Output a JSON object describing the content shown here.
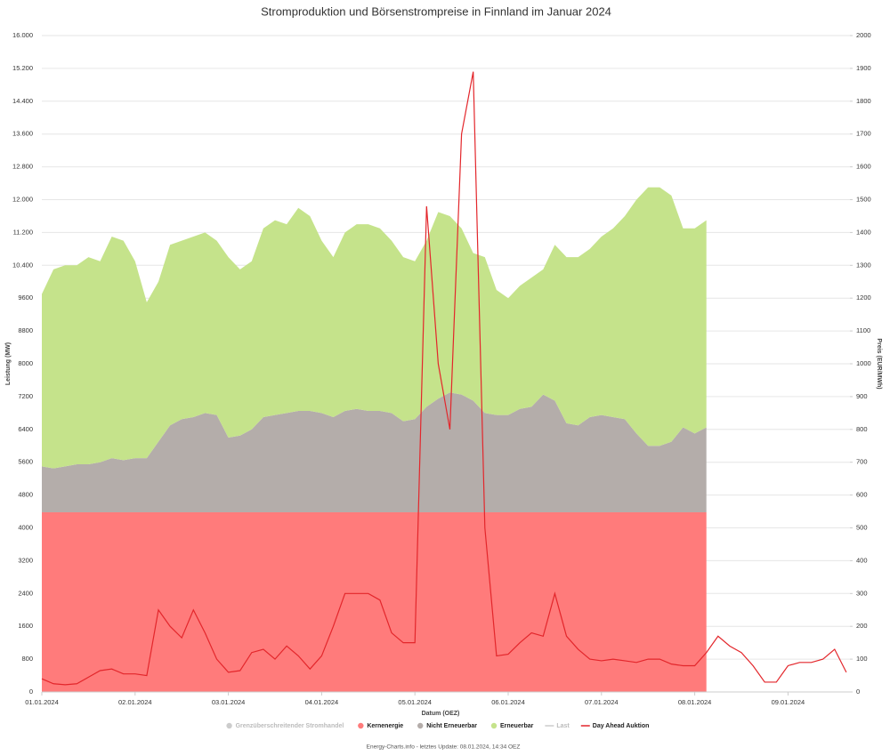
{
  "chart_data": {
    "type": "stacked_area_line",
    "title": "Stromproduktion und Börsenstrompreise in Finnland im Januar 2024",
    "xlabel": "Datum (OEZ)",
    "ylabel": "Leistung (MW)",
    "y2label": "Preis (EUR/MWh)",
    "footer": "Energy-Charts.info - letztes Update: 08.01.2024, 14:34 OEZ",
    "categories": [
      "01.01.2024",
      null,
      null,
      null,
      null,
      null,
      null,
      null,
      "02.01.2024",
      null,
      null,
      null,
      null,
      null,
      null,
      null,
      "03.01.2024",
      null,
      null,
      null,
      null,
      null,
      null,
      null,
      "04.01.2024",
      null,
      null,
      null,
      null,
      null,
      null,
      null,
      "05.01.2024",
      null,
      null,
      null,
      null,
      null,
      null,
      null,
      "06.01.2024",
      null,
      null,
      null,
      null,
      null,
      null,
      null,
      "07.01.2024",
      null,
      null,
      null,
      null,
      null,
      null,
      null,
      "08.01.2024",
      null,
      null,
      null,
      null,
      null,
      null,
      null,
      "09.01.2024",
      null,
      null,
      null,
      null,
      null
    ],
    "ylim": [
      0,
      16000
    ],
    "yticks": [
      0,
      800,
      1600,
      2400,
      3200,
      4000,
      4800,
      5600,
      6400,
      7200,
      8000,
      8800,
      9600,
      {
        "value": 10400,
        "label": "10.400"
      },
      {
        "value": 11200,
        "label": "11.200"
      },
      {
        "value": 12000,
        "label": "12.000"
      },
      {
        "value": 12800,
        "label": "12.800"
      },
      {
        "value": 13600,
        "label": "13.600"
      },
      {
        "value": 14400,
        "label": "14.400"
      },
      {
        "value": 15200,
        "label": "15.200"
      },
      {
        "value": 16000,
        "label": "16.000"
      }
    ],
    "y2lim": [
      0,
      2000
    ],
    "y2ticks": [
      0,
      100,
      200,
      300,
      400,
      500,
      600,
      700,
      800,
      900,
      1000,
      1100,
      1200,
      1300,
      1400,
      1500,
      1600,
      1700,
      1800,
      1900,
      2000
    ],
    "grid": true,
    "legend": "bottom",
    "series": [
      {
        "name": "Grenzüberschreitender Stromhandel",
        "color": "#bdbdbd",
        "visible": false
      },
      {
        "name": "Kernenergie",
        "color": "#ff7b7b",
        "kind": "area",
        "values": [
          4380,
          4380,
          4380,
          4380,
          4380,
          4380,
          4380,
          4380,
          4380,
          4380,
          4380,
          4380,
          4380,
          4380,
          4380,
          4380,
          4380,
          4380,
          4380,
          4380,
          4380,
          4380,
          4380,
          4380,
          4380,
          4380,
          4380,
          4380,
          4380,
          4380,
          4380,
          4380,
          4380,
          4380,
          4380,
          4380,
          4380,
          4380,
          4380,
          4380,
          4380,
          4380,
          4380,
          4380,
          4380,
          4380,
          4380,
          4380,
          4380,
          4380,
          4380,
          4380,
          4380,
          4380,
          4380,
          4380,
          4380,
          4380,
          null,
          null,
          null,
          null,
          null,
          null,
          null,
          null,
          null,
          null,
          null,
          null
        ]
      },
      {
        "name": "Nicht Erneuerbar",
        "color": "#b4adaa",
        "kind": "area",
        "values": [
          1120,
          1070,
          1120,
          1170,
          1170,
          1220,
          1320,
          1270,
          1320,
          1320,
          1720,
          2120,
          2270,
          2320,
          2420,
          2370,
          1820,
          1870,
          2020,
          2320,
          2370,
          2420,
          2470,
          2470,
          2420,
          2320,
          2470,
          2520,
          2470,
          2470,
          2420,
          2220,
          2270,
          2570,
          2770,
          2920,
          2870,
          2720,
          2420,
          2370,
          2370,
          2520,
          2570,
          2870,
          2720,
          2170,
          2120,
          2320,
          2370,
          2320,
          2270,
          1920,
          1620,
          1620,
          1720,
          2070,
          1920,
          2070,
          null,
          null,
          null,
          null,
          null,
          null,
          null,
          null,
          null,
          null,
          null,
          null
        ]
      },
      {
        "name": "Erneuerbar",
        "color": "#c5e38b",
        "kind": "area",
        "values": [
          4200,
          4850,
          4900,
          4850,
          5050,
          4900,
          5400,
          5350,
          4800,
          3800,
          3900,
          4400,
          4350,
          4400,
          4400,
          4250,
          4400,
          4050,
          4100,
          4600,
          4750,
          4600,
          4950,
          4750,
          4200,
          3900,
          4350,
          4500,
          4550,
          4450,
          4200,
          4000,
          3850,
          4050,
          4550,
          4300,
          4050,
          3600,
          3800,
          3050,
          2850,
          3000,
          3150,
          3050,
          3800,
          4050,
          4100,
          4100,
          4350,
          4600,
          4950,
          5700,
          6300,
          6300,
          6000,
          4850,
          5000,
          5050,
          null,
          null,
          null,
          null,
          null,
          null,
          null,
          null,
          null,
          null,
          null,
          null
        ]
      },
      {
        "name": "Last",
        "color": "#cccccc",
        "visible": false
      },
      {
        "name": "Day Ahead Auktion",
        "color": "#e3262b",
        "kind": "line",
        "axis": "y2",
        "values": [
          40,
          25,
          22,
          25,
          45,
          65,
          70,
          55,
          55,
          50,
          250,
          200,
          165,
          250,
          180,
          100,
          60,
          65,
          120,
          130,
          100,
          140,
          110,
          70,
          110,
          200,
          300,
          300,
          300,
          280,
          180,
          150,
          150,
          1480,
          1000,
          800,
          1700,
          1890,
          500,
          110,
          115,
          150,
          180,
          170,
          300,
          170,
          130,
          100,
          95,
          100,
          95,
          90,
          100,
          100,
          85,
          80,
          80,
          120,
          170,
          140,
          120,
          80,
          30,
          30,
          80,
          90,
          90,
          100,
          130,
          60
        ]
      }
    ]
  }
}
